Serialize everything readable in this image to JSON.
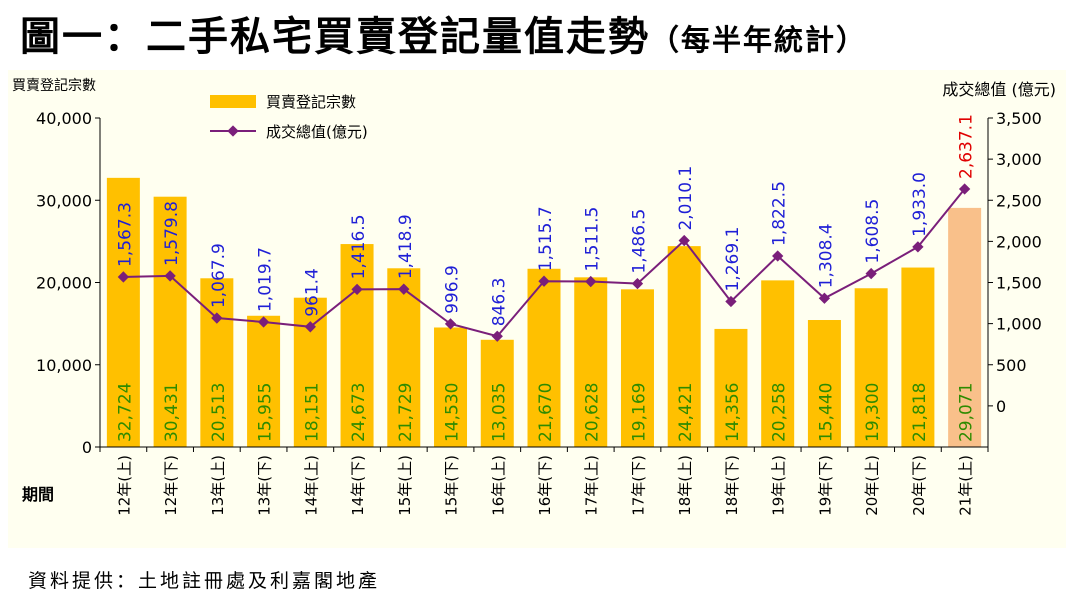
{
  "title": "圖一：二手私宅買賣登記量值走勢",
  "title_sub": "（每半年統計）",
  "source": "資料提供：土地註冊處及利嘉閣地產",
  "chart_data": {
    "type": "bar+line",
    "left_axis_label": "買賣登記宗數",
    "right_axis_label": "成交總值 (億元)",
    "x_axis_label": "期間",
    "categories": [
      "12年(上)",
      "12年(下)",
      "13年(上)",
      "13年(下)",
      "14年(上)",
      "14年(下)",
      "15年(上)",
      "15年(下)",
      "16年(上)",
      "16年(下)",
      "17年(上)",
      "17年(下)",
      "18年(上)",
      "18年(下)",
      "19年(上)",
      "19年(下)",
      "20年(上)",
      "20年(下)",
      "21年(上)"
    ],
    "left_ticks": [
      "0",
      "10,000",
      "20,000",
      "30,000",
      "40,000"
    ],
    "right_ticks": [
      "0",
      "500",
      "1,000",
      "1,500",
      "2,000",
      "2,500",
      "3,000",
      "3,500"
    ],
    "left_ylim": [
      0,
      40000
    ],
    "right_ylim": [
      -500,
      3500
    ],
    "series": [
      {
        "name": "買賣登記宗數",
        "kind": "bar",
        "color": "#ffc000",
        "highlight_color": "#f9c08a",
        "values": [
          32724,
          30431,
          20513,
          15955,
          18151,
          24673,
          21729,
          14530,
          13035,
          21670,
          20628,
          19169,
          24421,
          14356,
          20258,
          15440,
          19300,
          21818,
          29071
        ],
        "labels": [
          "32,724",
          "30,431",
          "20,513",
          "15,955",
          "18,151",
          "24,673",
          "21,729",
          "14,530",
          "13,035",
          "21,670",
          "20,628",
          "19,169",
          "24,421",
          "14,356",
          "20,258",
          "15,440",
          "19,300",
          "21,818",
          "29,071"
        ],
        "label_color": "#2e8b00"
      },
      {
        "name": "成交總值(億元)",
        "kind": "line",
        "color": "#7a1f7a",
        "values": [
          1567.3,
          1579.8,
          1067.9,
          1019.7,
          961.4,
          1416.5,
          1418.9,
          996.9,
          846.3,
          1515.7,
          1511.5,
          1486.5,
          2010.1,
          1269.1,
          1822.5,
          1308.4,
          1608.5,
          1933.0,
          2637.1
        ],
        "labels": [
          "1,567.3",
          "1,579.8",
          "1,067.9",
          "1,019.7",
          "961.4",
          "1,416.5",
          "1,418.9",
          "996.9",
          "846.3",
          "1,515.7",
          "1,511.5",
          "1,486.5",
          "2,010.1",
          "1,269.1",
          "1,822.5",
          "1,308.4",
          "1,608.5",
          "1,933.0",
          "2,637.1"
        ],
        "label_color": "#1f1fd6",
        "last_label_color": "#e00000"
      }
    ]
  }
}
